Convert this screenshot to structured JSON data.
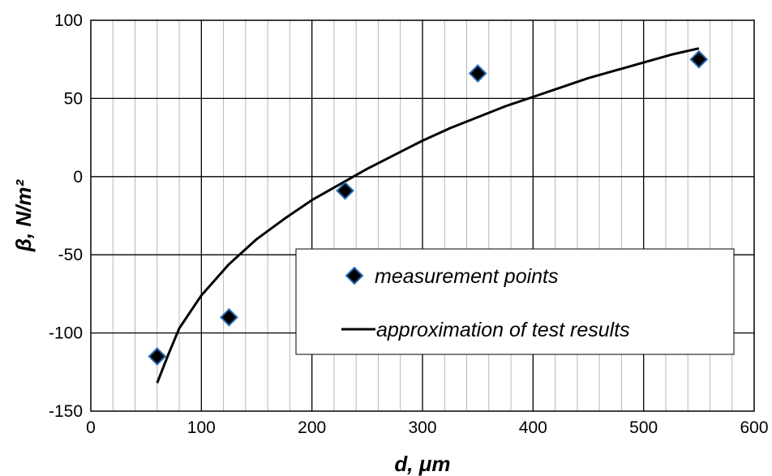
{
  "chart_data": {
    "type": "scatter",
    "xlabel": "d, μm",
    "ylabel": "β, N/m²",
    "xlim": [
      0,
      600
    ],
    "ylim": [
      -150,
      100
    ],
    "x_ticks": [
      0,
      100,
      200,
      300,
      400,
      500,
      600
    ],
    "y_ticks": [
      -150,
      -100,
      -50,
      0,
      50,
      100
    ],
    "x_tick_labels": [
      "0",
      "100",
      "200",
      "300",
      "400",
      "500",
      "600"
    ],
    "y_tick_labels": [
      "-150",
      "-100",
      "-50",
      "0",
      "50",
      "100"
    ],
    "grid": "on",
    "legend_position": "lower-right",
    "series": [
      {
        "name": "measurement points",
        "kind": "scatter",
        "marker": "diamond",
        "color": "#000000",
        "edge_color": "#2a6fb8",
        "x": [
          60,
          125,
          230,
          350,
          550
        ],
        "y": [
          -115,
          -90,
          -9,
          66,
          75
        ]
      },
      {
        "name": "approximation of test results",
        "kind": "line",
        "color": "#000000",
        "x": [
          60,
          70,
          80,
          100,
          125,
          150,
          175,
          200,
          225,
          250,
          275,
          300,
          325,
          350,
          375,
          400,
          425,
          450,
          475,
          500,
          525,
          550
        ],
        "y": [
          -132,
          -114,
          -97,
          -76,
          -56,
          -40,
          -27,
          -15,
          -5,
          5,
          14,
          23,
          31,
          38,
          45,
          51,
          57,
          63,
          68,
          73,
          78,
          82
        ]
      }
    ]
  }
}
